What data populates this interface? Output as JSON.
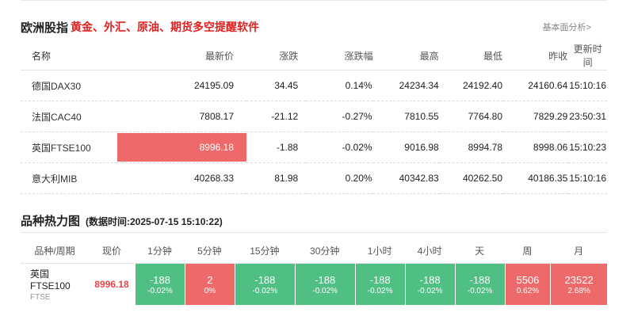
{
  "header": {
    "title": "欧洲股指",
    "promo": "黄金、外汇、原油、期货多空提醒软件",
    "more_link": "基本面分析>"
  },
  "index_table": {
    "columns": [
      "名称",
      "最新价",
      "涨跌",
      "涨跌幅",
      "最高",
      "最低",
      "昨收",
      "更新时间"
    ],
    "rows": [
      {
        "name": "德国DAX30",
        "last": "24195.09",
        "change": "34.45",
        "pct": "0.14%",
        "high": "24234.34",
        "low": "24192.40",
        "prev": "24160.64",
        "time": "15:10:16",
        "dir": "up"
      },
      {
        "name": "法国CAC40",
        "last": "7808.17",
        "change": "-21.12",
        "pct": "-0.27%",
        "high": "7810.55",
        "low": "7764.80",
        "prev": "7829.29",
        "time": "23:50:31",
        "dir": "down"
      },
      {
        "name": "英国FTSE100",
        "last": "8996.18",
        "change": "-1.88",
        "pct": "-0.02%",
        "high": "9016.98",
        "low": "8994.78",
        "prev": "8998.06",
        "time": "15:10:23",
        "dir": "down"
      },
      {
        "name": "意大利MIB",
        "last": "40268.33",
        "change": "81.98",
        "pct": "0.20%",
        "high": "40342.83",
        "low": "40262.50",
        "prev": "40186.35",
        "time": "15:10:16",
        "dir": "up"
      }
    ]
  },
  "heatmap": {
    "title": "品种热力图",
    "timestamp": "(数据时间:2025-07-15 15:10:22)",
    "columns": [
      "品种/周期",
      "现价",
      "1分钟",
      "5分钟",
      "15分钟",
      "30分钟",
      "1小时",
      "4小时",
      "天",
      "周",
      "月"
    ],
    "symbol": "英国FTSE100",
    "code": "FTSE",
    "price": "8996.18",
    "cells": [
      {
        "value": "-188",
        "pct": "-0.02%",
        "dir": "down"
      },
      {
        "value": "2",
        "pct": "0%",
        "dir": "up"
      },
      {
        "value": "-188",
        "pct": "-0.02%",
        "dir": "down"
      },
      {
        "value": "-188",
        "pct": "-0.02%",
        "dir": "down"
      },
      {
        "value": "-188",
        "pct": "-0.02%",
        "dir": "down"
      },
      {
        "value": "-188",
        "pct": "-0.02%",
        "dir": "down"
      },
      {
        "value": "-188",
        "pct": "-0.02%",
        "dir": "down"
      },
      {
        "value": "5506",
        "pct": "0.62%",
        "dir": "up"
      },
      {
        "value": "23522",
        "pct": "2.68%",
        "dir": "up"
      }
    ]
  },
  "colors": {
    "up": "#e84545",
    "down": "#1aa358",
    "heat_up": "#ee6a6a",
    "heat_down": "#4fbf84"
  }
}
